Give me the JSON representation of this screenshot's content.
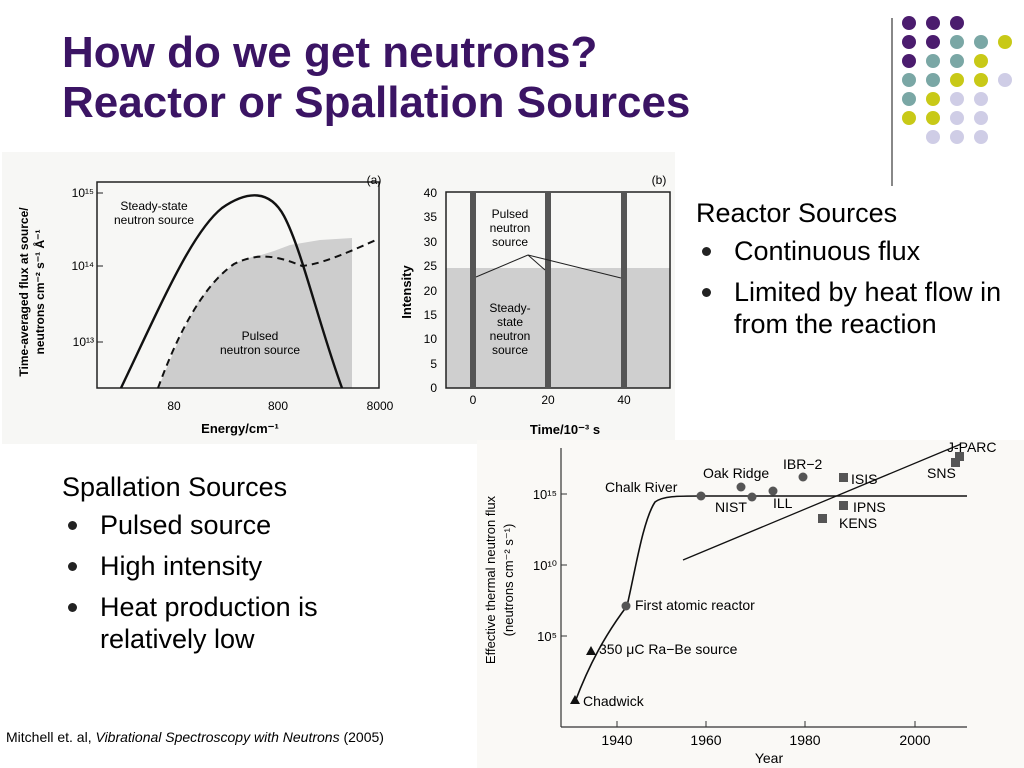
{
  "slide": {
    "title_line1": "How do we get neutrons?",
    "title_line2": "Reactor or Spallation Sources"
  },
  "decor_colors": {
    "purple": "#4b1c6e",
    "teal": "#7aa7a5",
    "yellow": "#c8c917",
    "lavender": "#cfcde6"
  },
  "reactor": {
    "heading": "Reactor Sources",
    "bullets": [
      "Continuous flux",
      "Limited by heat flow in from the reaction"
    ]
  },
  "spallation": {
    "heading": "Spallation Sources",
    "bullets": [
      "Pulsed source",
      "High intensity",
      "Heat production is relatively low"
    ]
  },
  "citation": {
    "authors": "Mitchell et. al,",
    "book": "Vibrational Spectroscopy with Neutrons",
    "year": "(2005)"
  },
  "figure_a": {
    "panel_label": "(a)",
    "ylabel_line1": "Time-averaged flux at source/",
    "ylabel_line2": "neutrons cm⁻² s⁻¹ Å⁻¹",
    "xlabel": "Energy/cm⁻¹",
    "y_ticks": [
      "10¹⁵",
      "10¹⁴",
      "10¹³"
    ],
    "x_ticks": [
      "80",
      "800",
      "8000"
    ],
    "label_steady": [
      "Steady-state",
      "neutron source"
    ],
    "label_pulsed": [
      "Pulsed",
      "neutron source"
    ]
  },
  "figure_b": {
    "panel_label": "(b)",
    "ylabel": "Intensity",
    "xlabel": "Time/10⁻³ s",
    "y_ticks": [
      "40",
      "35",
      "30",
      "25",
      "20",
      "15",
      "10",
      "5",
      "0"
    ],
    "x_ticks": [
      "0",
      "20",
      "40"
    ],
    "label_pulsed": [
      "Pulsed",
      "neutron",
      "source"
    ],
    "label_steady": [
      "Steady-",
      "state",
      "neutron",
      "source"
    ]
  },
  "figure_c": {
    "ylabel_line1": "Effective thermal neutron flux",
    "ylabel_line2": "(neutrons cm⁻² s⁻¹)",
    "xlabel": "Year",
    "x_ticks": [
      "1940",
      "1960",
      "1980",
      "2000"
    ],
    "y_ticks": [
      "10¹⁵",
      "10¹⁰",
      "10⁵"
    ],
    "points": {
      "jparc": "J-PARC",
      "sns": "SNS",
      "ibr2": "IBR−2",
      "oak_ridge": "Oak Ridge",
      "isis": "ISIS",
      "chalk_river": "Chalk River",
      "nist": "NIST",
      "ill": "ILL",
      "ipns": "IPNS",
      "kens": "KENS",
      "first_reactor": "First atomic reactor",
      "ra_be": "350 μC Ra−Be source",
      "chadwick": "Chadwick"
    }
  }
}
